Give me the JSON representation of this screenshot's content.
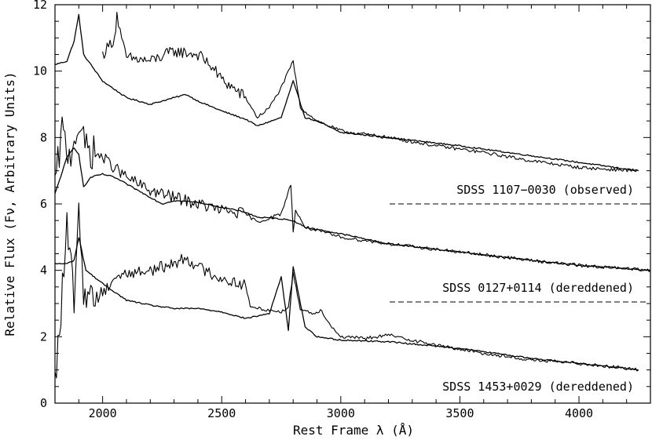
{
  "chart_data": {
    "type": "line",
    "xlabel": "Rest Frame λ (Å)",
    "ylabel": "Relative Flux (Fν, Arbitrary Units)",
    "xlim": [
      1800,
      4300
    ],
    "ylim": [
      0,
      12
    ],
    "xticks": [
      2000,
      2500,
      3000,
      3500,
      4000
    ],
    "yticks": [
      0,
      2,
      4,
      6,
      8,
      10,
      12
    ],
    "grid": false,
    "annotations": [
      "SDSS 1107−0030 (observed)",
      "SDSS 0127+0114 (dereddened)",
      "SDSS 1453+0029 (dereddened)"
    ],
    "series": [
      {
        "x": [
          1800,
          1850,
          1880,
          1900,
          1920,
          2000,
          2050,
          2100,
          2200,
          2300,
          2350,
          2400,
          2500,
          2600,
          2650,
          2750,
          2800,
          2850,
          2900,
          3000,
          3200,
          3500,
          3700,
          3900,
          4100,
          4250
        ],
        "y": [
          10.2,
          10.3,
          10.9,
          11.7,
          10.5,
          9.7,
          9.45,
          9.2,
          9.0,
          9.2,
          9.3,
          9.1,
          8.8,
          8.55,
          8.35,
          8.6,
          9.7,
          8.6,
          8.5,
          8.15,
          8.0,
          7.75,
          7.55,
          7.35,
          7.15,
          7.0
        ]
      },
      {
        "x": [
          2000,
          2050,
          2060,
          2080,
          2100,
          2200,
          2300,
          2400,
          2450,
          2500,
          2600,
          2650,
          2700,
          2750,
          2800,
          2830,
          2900,
          3000,
          3200,
          3400,
          3600,
          3800,
          4000,
          4100,
          4250
        ],
        "y": [
          10.5,
          11.0,
          11.7,
          10.9,
          10.4,
          10.3,
          10.6,
          10.5,
          10.2,
          9.75,
          9.2,
          8.6,
          8.9,
          9.5,
          10.3,
          8.9,
          8.5,
          8.2,
          8.0,
          7.75,
          7.55,
          7.3,
          7.1,
          7.05,
          7.0
        ]
      },
      {
        "x": [
          1800,
          1850,
          1880,
          1900,
          1920,
          1950,
          2000,
          2050,
          2100,
          2200,
          2250,
          2300,
          2400,
          2500,
          2600,
          2650,
          2750,
          2800,
          2850,
          3000,
          3200,
          3500,
          3800,
          4000,
          4200,
          4300
        ],
        "y": [
          6.3,
          7.4,
          7.7,
          7.5,
          6.5,
          6.8,
          6.9,
          6.8,
          6.6,
          6.2,
          6.0,
          6.1,
          6.05,
          5.9,
          5.75,
          5.6,
          5.55,
          5.5,
          5.3,
          5.1,
          4.8,
          4.55,
          4.3,
          4.15,
          4.05,
          4.0
        ]
      },
      {
        "x": [
          1800,
          1830,
          1860,
          1880,
          1900,
          1920,
          1950,
          2000,
          2050,
          2100,
          2200,
          2300,
          2400,
          2500,
          2600,
          2650,
          2750,
          2790,
          2800,
          2810,
          2850,
          2900,
          3000,
          3200,
          3500,
          3800,
          4000,
          4200,
          4300
        ],
        "y": [
          6.5,
          8.2,
          7.4,
          8.0,
          8.4,
          7.8,
          7.6,
          7.4,
          7.1,
          6.8,
          6.4,
          6.2,
          6.0,
          5.8,
          5.7,
          5.45,
          5.7,
          6.6,
          5.2,
          5.8,
          5.3,
          5.2,
          5.0,
          4.8,
          4.55,
          4.3,
          4.15,
          4.05,
          4.0
        ]
      },
      {
        "x": [
          1800,
          1850,
          1880,
          1900,
          1930,
          2000,
          2100,
          2200,
          2300,
          2400,
          2500,
          2600,
          2700,
          2750,
          2780,
          2800,
          2850,
          2900,
          3000,
          3200,
          3500,
          3800,
          4000,
          4200,
          4250
        ],
        "y": [
          4.2,
          4.2,
          4.3,
          5.0,
          4.0,
          3.6,
          3.1,
          2.95,
          2.85,
          2.85,
          2.75,
          2.55,
          2.7,
          3.8,
          2.2,
          4.1,
          2.3,
          2.0,
          1.9,
          1.85,
          1.65,
          1.35,
          1.2,
          1.05,
          1.0
        ]
      },
      {
        "x": [
          1800,
          1850,
          1880,
          1900,
          1920,
          1950,
          2000,
          2050,
          2100,
          2200,
          2300,
          2350,
          2400,
          2500,
          2600,
          2620,
          2700,
          2750,
          2780,
          2800,
          2830,
          2880,
          2920,
          2950,
          3000,
          3100,
          3200,
          3400,
          3600,
          3800,
          4000,
          4200,
          4250
        ],
        "y": [
          0.5,
          5.2,
          3.2,
          5.5,
          3.5,
          3.2,
          3.3,
          3.8,
          3.9,
          4.0,
          4.2,
          4.4,
          4.1,
          3.75,
          3.55,
          2.9,
          2.8,
          2.75,
          2.9,
          3.9,
          2.85,
          2.7,
          2.8,
          2.4,
          2.0,
          1.95,
          2.05,
          1.75,
          1.5,
          1.3,
          1.2,
          1.05,
          1.0
        ]
      }
    ]
  }
}
